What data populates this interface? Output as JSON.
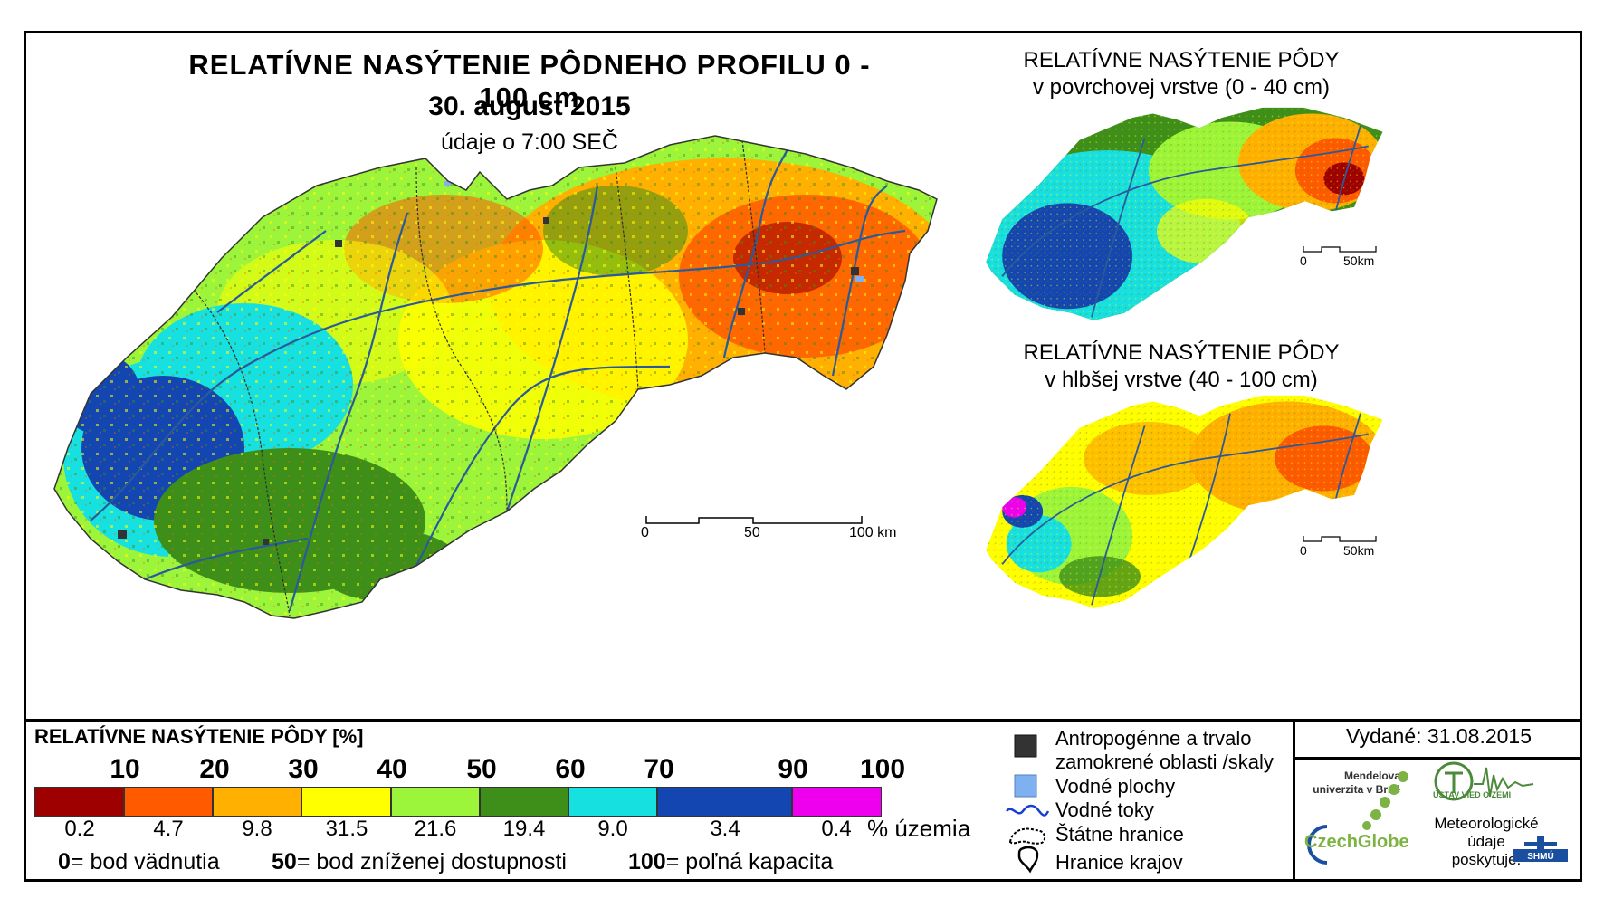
{
  "header": {
    "title": "RELATÍVNE NASÝTENIE PÔDNEHO PROFILU 0 - 100 cm",
    "date": "30. august 2015",
    "subtitle": "údaje o 7:00 SEČ"
  },
  "insets": [
    {
      "title_line1": "RELATÍVNE NASÝTENIE PÔDY",
      "title_line2": "v povrchovej vrstve (0 - 40 cm)"
    },
    {
      "title_line1": "RELATÍVNE NASÝTENIE PÔDY",
      "title_line2": "v hlbšej vrstve (40 - 100 cm)"
    }
  ],
  "scalebar_main": {
    "labels": [
      "0",
      "50",
      "100 km"
    ]
  },
  "scalebar_inset": {
    "labels": [
      "0",
      "50km"
    ]
  },
  "legend": {
    "title": "RELATÍVNE NASÝTENIE PÔDY [%]",
    "bounds": [
      "10",
      "20",
      "30",
      "40",
      "50",
      "60",
      "70",
      "90",
      "100"
    ],
    "classes": [
      {
        "color": "#9e0000",
        "percent": "0.2"
      },
      {
        "color": "#ff5a00",
        "percent": "4.7"
      },
      {
        "color": "#ffb000",
        "percent": "9.8"
      },
      {
        "color": "#ffff00",
        "percent": "31.5"
      },
      {
        "color": "#9cf53a",
        "percent": "21.6"
      },
      {
        "color": "#3d8f1a",
        "percent": "19.4"
      },
      {
        "color": "#17e0e0",
        "percent": "9.0"
      },
      {
        "color": "#1346b0",
        "percent": "3.4"
      },
      {
        "color": "#ee00ee",
        "percent": "0.4"
      }
    ],
    "unit": "% územia",
    "definitions": [
      {
        "value": "0",
        "text": "= bod vädnutia"
      },
      {
        "value": "50",
        "text": "= bod zníženej dostupnosti"
      },
      {
        "value": "100",
        "text": "= poľná kapacita"
      }
    ]
  },
  "symbols": [
    {
      "icon": "anthropogenic-area-icon",
      "line1": "Antropogénne a trvalo",
      "line2": "zamokrené oblasti /skaly"
    },
    {
      "icon": "water-area-icon",
      "line1": "Vodné plochy"
    },
    {
      "icon": "river-icon",
      "line1": "Vodné toky"
    },
    {
      "icon": "state-border-icon",
      "line1": "Štátne hranice"
    },
    {
      "icon": "region-border-icon",
      "line1": "Hranice krajov"
    }
  ],
  "issued": "Vydané: 31.08.2015",
  "logos": {
    "mendel": "Mendelova univerzita v Brně",
    "czechglobe": "CzechGlobe",
    "ustav": "ÚSTAV VIED O ZEMI",
    "meteo": "Meteorologické údaje poskytuje:",
    "shmu": "SHMÚ"
  },
  "colors": {
    "frame": "#000000",
    "river": "#2a5a9a",
    "anthropogenic": "#333333",
    "water": "#7fb0f0"
  }
}
